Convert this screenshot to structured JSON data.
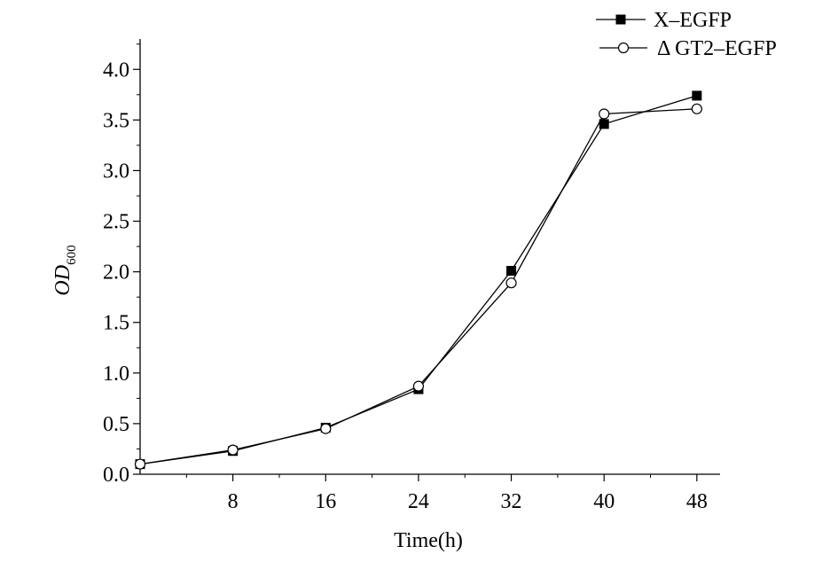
{
  "chart_data": {
    "type": "line",
    "title": "",
    "xlabel": "Time(h)",
    "ylabel": {
      "main": "OD",
      "subscript": "600"
    },
    "xlim": [
      0,
      50
    ],
    "ylim": [
      0,
      4.3
    ],
    "x_ticks": [
      8,
      16,
      24,
      32,
      40,
      48
    ],
    "x_tick_labels": [
      "8",
      "16",
      "24",
      "32",
      "40",
      "48"
    ],
    "x_minor_ticks": [
      4,
      12,
      20,
      28,
      36,
      44
    ],
    "y_ticks": [
      0,
      0.5,
      1.0,
      1.5,
      2.0,
      2.5,
      3.0,
      3.5,
      4.0
    ],
    "y_tick_labels": [
      "0.0",
      "0.5",
      "1.0",
      "1.5",
      "2.0",
      "2.5",
      "3.0",
      "3.5",
      "4.0"
    ],
    "y_minor_ticks": [
      0.25,
      0.75,
      1.25,
      1.75,
      2.25,
      2.75,
      3.25,
      3.75,
      4.25
    ],
    "grid": false,
    "legend_position": "top-right",
    "x": [
      0,
      8,
      16,
      24,
      32,
      40,
      48
    ],
    "series": [
      {
        "name": "X–EGFP",
        "marker": "filled-square",
        "values": [
          0.1,
          0.23,
          0.46,
          0.84,
          2.01,
          3.46,
          3.74
        ]
      },
      {
        "name": "Δ GT2–EGFP",
        "marker": "open-circle",
        "values": [
          0.1,
          0.24,
          0.45,
          0.87,
          1.89,
          3.56,
          3.61
        ]
      }
    ],
    "colors": {
      "line": "#000000",
      "background": "#ffffff"
    }
  }
}
